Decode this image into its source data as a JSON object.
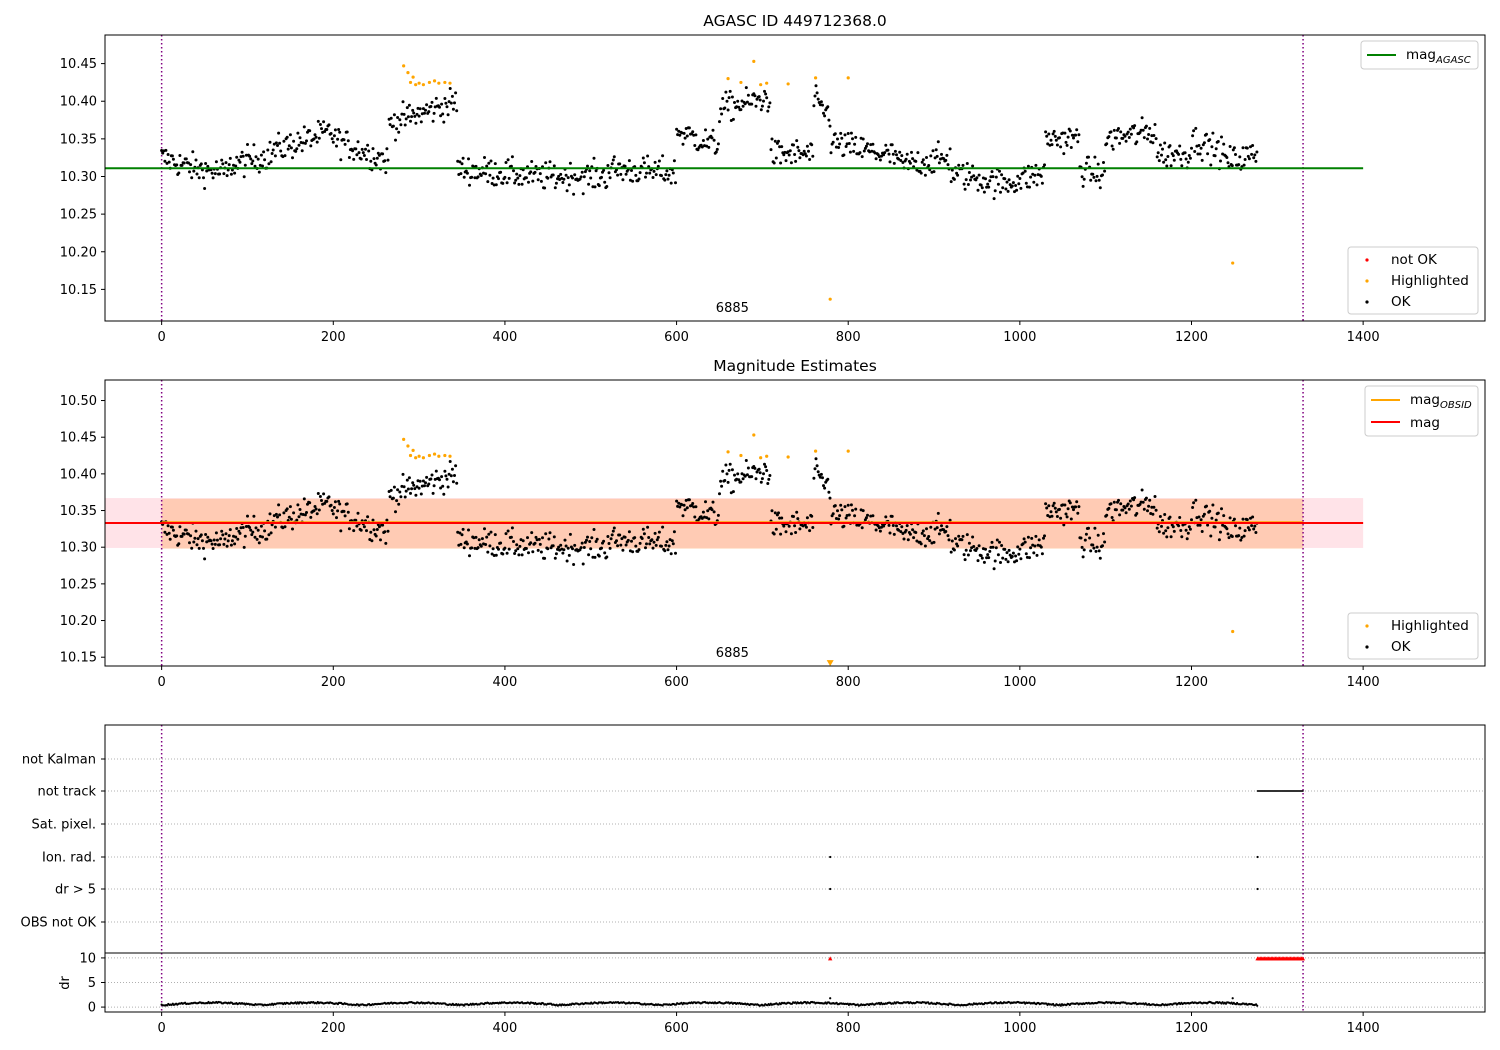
{
  "colors": {
    "ok": "#000000",
    "highlighted": "#ffa500",
    "not_ok": "#ff0000",
    "mag_agasc": "#008000",
    "mag_obsid": "#ffa500",
    "mag": "#ff0000",
    "obs_boundary": "#800080",
    "band_inner": "#ffb380",
    "band_outer": "#ffc0cb"
  },
  "chart_data": [
    {
      "type": "scatter",
      "title": "AGASC ID 449712368.0",
      "xlim": [
        -66,
        1542
      ],
      "ylim": [
        10.108,
        10.488
      ],
      "xticks": [
        0,
        200,
        400,
        600,
        800,
        1000,
        1200,
        1400
      ],
      "xtick_labels": [
        "0",
        "200",
        "400",
        "600",
        "800",
        "1000",
        "1200",
        "1400"
      ],
      "yticks": [
        10.15,
        10.2,
        10.25,
        10.3,
        10.35,
        10.4,
        10.45
      ],
      "ytick_labels": [
        "10.15",
        "10.20",
        "10.25",
        "10.30",
        "10.35",
        "10.40",
        "10.45"
      ],
      "obs_boundaries": [
        0,
        1330
      ],
      "obsid_annotation": {
        "text": "6885",
        "x": 665
      },
      "mag_agasc": 10.311,
      "mag_agasc_xrange": [
        -66,
        1400
      ],
      "segments": [
        {
          "x0": 0,
          "x1": 40,
          "y0": 10.325,
          "y1": 10.31
        },
        {
          "x0": 40,
          "x1": 80,
          "y0": 10.31,
          "y1": 10.305
        },
        {
          "x0": 80,
          "x1": 130,
          "y0": 10.315,
          "y1": 10.33
        },
        {
          "x0": 130,
          "x1": 200,
          "y0": 10.335,
          "y1": 10.36
        },
        {
          "x0": 200,
          "x1": 265,
          "y0": 10.35,
          "y1": 10.32
        },
        {
          "x0": 265,
          "x1": 345,
          "y0": 10.37,
          "y1": 10.4
        },
        {
          "x0": 345,
          "x1": 440,
          "y0": 10.31,
          "y1": 10.3
        },
        {
          "x0": 440,
          "x1": 520,
          "y0": 10.3,
          "y1": 10.3
        },
        {
          "x0": 520,
          "x1": 600,
          "y0": 10.31,
          "y1": 10.305
        },
        {
          "x0": 600,
          "x1": 650,
          "y0": 10.36,
          "y1": 10.34
        },
        {
          "x0": 650,
          "x1": 710,
          "y0": 10.39,
          "y1": 10.405
        },
        {
          "x0": 710,
          "x1": 760,
          "y0": 10.33,
          "y1": 10.33
        },
        {
          "x0": 760,
          "x1": 780,
          "y0": 10.4,
          "y1": 10.38
        },
        {
          "x0": 780,
          "x1": 860,
          "y0": 10.345,
          "y1": 10.325
        },
        {
          "x0": 860,
          "x1": 920,
          "y0": 10.315,
          "y1": 10.325
        },
        {
          "x0": 920,
          "x1": 980,
          "y0": 10.305,
          "y1": 10.29
        },
        {
          "x0": 980,
          "x1": 1030,
          "y0": 10.29,
          "y1": 10.305
        },
        {
          "x0": 1030,
          "x1": 1070,
          "y0": 10.35,
          "y1": 10.35
        },
        {
          "x0": 1070,
          "x1": 1100,
          "y0": 10.31,
          "y1": 10.3
        },
        {
          "x0": 1100,
          "x1": 1160,
          "y0": 10.35,
          "y1": 10.36
        },
        {
          "x0": 1160,
          "x1": 1200,
          "y0": 10.33,
          "y1": 10.33
        },
        {
          "x0": 1200,
          "x1": 1240,
          "y0": 10.35,
          "y1": 10.33
        },
        {
          "x0": 1240,
          "x1": 1277,
          "y0": 10.32,
          "y1": 10.33
        }
      ],
      "highlighted": [
        {
          "x": 282,
          "y": 10.447
        },
        {
          "x": 287,
          "y": 10.438
        },
        {
          "x": 290,
          "y": 10.425
        },
        {
          "x": 293,
          "y": 10.432
        },
        {
          "x": 296,
          "y": 10.422
        },
        {
          "x": 300,
          "y": 10.424
        },
        {
          "x": 305,
          "y": 10.422
        },
        {
          "x": 312,
          "y": 10.425
        },
        {
          "x": 318,
          "y": 10.427
        },
        {
          "x": 323,
          "y": 10.424
        },
        {
          "x": 330,
          "y": 10.425
        },
        {
          "x": 336,
          "y": 10.424
        },
        {
          "x": 660,
          "y": 10.43
        },
        {
          "x": 675,
          "y": 10.425
        },
        {
          "x": 690,
          "y": 10.453
        },
        {
          "x": 698,
          "y": 10.422
        },
        {
          "x": 705,
          "y": 10.424
        },
        {
          "x": 730,
          "y": 10.423
        },
        {
          "x": 762,
          "y": 10.431
        },
        {
          "x": 779,
          "y": 10.137
        },
        {
          "x": 800,
          "y": 10.431
        },
        {
          "x": 1248,
          "y": 10.185
        }
      ],
      "legend_top": [
        "mag_AGASC"
      ],
      "legend_bottom": [
        "not OK",
        "Highlighted",
        "OK"
      ]
    },
    {
      "type": "scatter",
      "title": "Magnitude Estimates",
      "xlim": [
        -66,
        1542
      ],
      "ylim": [
        10.138,
        10.528
      ],
      "xticks": [
        0,
        200,
        400,
        600,
        800,
        1000,
        1200,
        1400
      ],
      "xtick_labels": [
        "0",
        "200",
        "400",
        "600",
        "800",
        "1000",
        "1200",
        "1400"
      ],
      "yticks": [
        10.15,
        10.2,
        10.25,
        10.3,
        10.35,
        10.4,
        10.45,
        10.5
      ],
      "ytick_labels": [
        "10.15",
        "10.20",
        "10.25",
        "10.30",
        "10.35",
        "10.40",
        "10.45",
        "10.50"
      ],
      "obs_boundaries": [
        0,
        1330
      ],
      "obsid_annotation": {
        "text": "6885",
        "x": 665
      },
      "mag": 10.333,
      "mag_obsid": 10.334,
      "mag_band": [
        10.299,
        10.367
      ],
      "mag_band_obsid": [
        10.298,
        10.366
      ],
      "band_xrange": [
        -66,
        1400
      ],
      "outlier_marker": {
        "x": 779,
        "y": 10.142
      },
      "legend_top": [
        "mag_OBSID",
        "mag"
      ],
      "legend_bottom": [
        "Highlighted",
        "OK"
      ]
    },
    {
      "type": "scatter",
      "title": "",
      "xlim": [
        -66,
        1542
      ],
      "xticks": [
        0,
        200,
        400,
        600,
        800,
        1000,
        1200,
        1400
      ],
      "xtick_labels": [
        "0",
        "200",
        "400",
        "600",
        "800",
        "1000",
        "1200",
        "1400"
      ],
      "obs_boundaries": [
        0,
        1330
      ],
      "flag_categories": [
        "not Kalman",
        "not track",
        "Sat. pixel.",
        "Ion. rad.",
        "dr > 5",
        "OBS not OK"
      ],
      "flags": {
        "not track": {
          "x_range": [
            1277,
            1330
          ]
        },
        "Ion. rad.": {
          "x": [
            779,
            1277
          ]
        },
        "dr > 5": {
          "x": [
            779,
            1277
          ]
        }
      },
      "dr_ylabel": "dr",
      "dr_yticks": [
        0,
        5,
        10
      ],
      "dr_ytick_labels": [
        "0",
        "5",
        "10"
      ],
      "dr_ylim": [
        -1,
        11
      ],
      "dr_clipped_x_range": [
        1277,
        1330
      ],
      "dr_clipped_marker_x": 779,
      "dr_clipped_value": 9.9
    }
  ]
}
